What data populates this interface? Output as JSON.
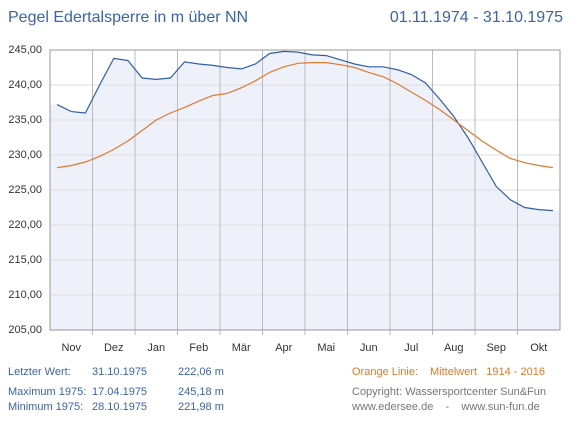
{
  "header": {
    "title": "Pegel Edertalsperre in m über NN",
    "date_range": "01.11.1974 - 31.10.1975"
  },
  "chart_data": {
    "type": "line",
    "categories": [
      null,
      "Nov",
      null,
      null,
      "Dez",
      null,
      null,
      "Jan",
      null,
      null,
      "Feb",
      null,
      null,
      "Mär",
      null,
      null,
      "Apr",
      null,
      null,
      "Mai",
      null,
      null,
      "Jun",
      null,
      null,
      "Jul",
      null,
      null,
      "Aug",
      null,
      null,
      "Sep",
      null,
      null,
      "Okt",
      null
    ],
    "ylim": [
      205,
      245
    ],
    "yticks": [
      {
        "value": 205,
        "label": "205,00"
      },
      {
        "value": 210,
        "label": "210,00"
      },
      {
        "value": 215,
        "label": "215,00"
      },
      {
        "value": 220,
        "label": "220,00"
      },
      {
        "value": 225,
        "label": "225,00"
      },
      {
        "value": 230,
        "label": "230,00"
      },
      {
        "value": 235,
        "label": "235,00"
      },
      {
        "value": 240,
        "label": "240,00"
      },
      {
        "value": 245,
        "label": "245,00"
      }
    ],
    "grid": true,
    "series": [
      {
        "color": "#2f5fa8",
        "fill": "#eef0fa",
        "values": [
          237.2,
          236.2,
          236.0,
          240.0,
          243.8,
          243.5,
          241.0,
          240.8,
          241.0,
          243.3,
          243.0,
          242.8,
          242.5,
          242.3,
          243.0,
          244.5,
          244.8,
          244.7,
          244.3,
          244.2,
          243.6,
          243.0,
          242.6,
          242.6,
          242.2,
          241.5,
          240.3,
          238.0,
          235.5,
          232.5,
          229.0,
          225.5,
          223.6,
          222.5,
          222.2,
          222.06
        ]
      },
      {
        "color": "#e07a2e",
        "values": [
          228.2,
          228.5,
          229.0,
          229.8,
          230.8,
          232.0,
          233.5,
          235.0,
          236.0,
          236.8,
          237.7,
          238.5,
          238.8,
          239.6,
          240.6,
          241.8,
          242.6,
          243.1,
          243.2,
          243.2,
          242.9,
          242.5,
          241.8,
          241.2,
          240.2,
          239.0,
          237.8,
          236.5,
          235.0,
          233.5,
          232.0,
          230.7,
          229.5,
          228.9,
          228.5,
          228.2
        ]
      }
    ]
  },
  "footer": {
    "last": {
      "label": "Letzter Wert:",
      "date": "31.10.1975",
      "value": "222,06 m"
    },
    "max": {
      "label": "Maximum 1975:",
      "date": "17.04.1975",
      "value": "245,18 m"
    },
    "min": {
      "label": "Minimum  1975:",
      "date": "28.10.1975",
      "value": "221,98 m"
    },
    "note": {
      "label": "Orange Linie:",
      "text": "Mittelwert   1914 - 2016"
    },
    "copyright": "Copyright: Wassersportcenter Sun&Fun",
    "links": "www.edersee.de    -    www.sun-fun.de"
  }
}
